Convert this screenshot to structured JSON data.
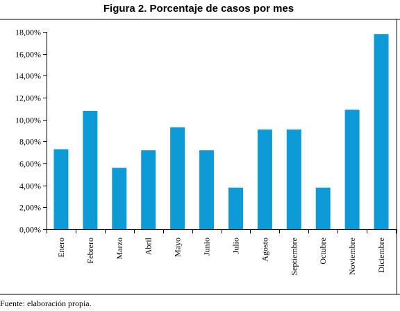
{
  "chart_data": {
    "type": "bar",
    "title": "Figura 2. Porcentaje de casos por mes",
    "categories": [
      "Enero",
      "Febrero",
      "Marzo",
      "Abril",
      "Mayo",
      "Junio",
      "Julio",
      "Agosto",
      "Septiembre",
      "Octubre",
      "Noviembre",
      "Diciembre"
    ],
    "values": [
      7.3,
      10.8,
      5.6,
      7.2,
      9.3,
      7.2,
      3.8,
      9.1,
      9.1,
      3.8,
      10.9,
      17.8
    ],
    "yticks": [
      "0,00%",
      "2,00%",
      "4,00%",
      "6,00%",
      "8,00%",
      "10,00%",
      "12,00%",
      "14,00%",
      "16,00%",
      "18,00%"
    ],
    "ylim": [
      0,
      18
    ],
    "bar_color": "#0e9ad7",
    "grid": false
  },
  "source_note": "Fuente: elaboración propia."
}
